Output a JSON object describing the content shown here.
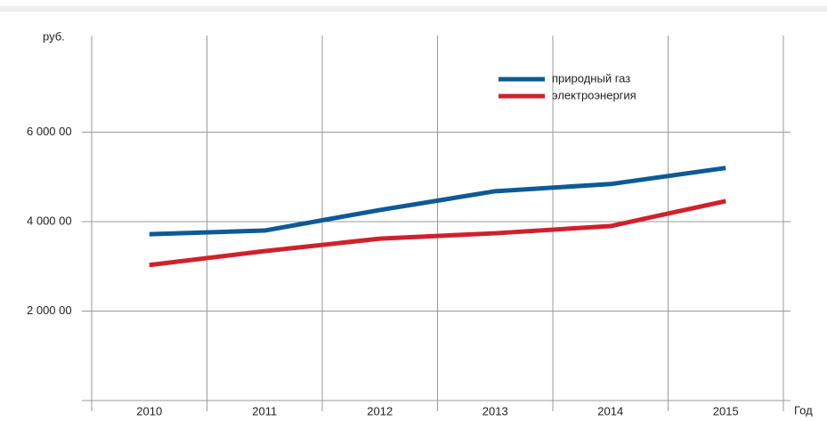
{
  "chart_data": {
    "type": "line",
    "y_label": "руб.",
    "x_label": "Год",
    "categories": [
      "2010",
      "2011",
      "2012",
      "2013",
      "2014",
      "2015"
    ],
    "series": [
      {
        "name": "природный газ",
        "color": "#0d5a96",
        "values": [
          3720,
          3800,
          4260,
          4680,
          4840,
          5200
        ]
      },
      {
        "name": "электроэнергия",
        "color": "#d0212b",
        "values": [
          3030,
          3340,
          3620,
          3740,
          3900,
          4460
        ]
      }
    ],
    "ylim": [
      0,
      8000
    ],
    "yticks": [
      {
        "value": 2000,
        "label": "2 000 00"
      },
      {
        "value": 4000,
        "label": "4 000 00"
      },
      {
        "value": 6000,
        "label": "6 000 00"
      }
    ],
    "grid": true,
    "legend": "top-right"
  }
}
